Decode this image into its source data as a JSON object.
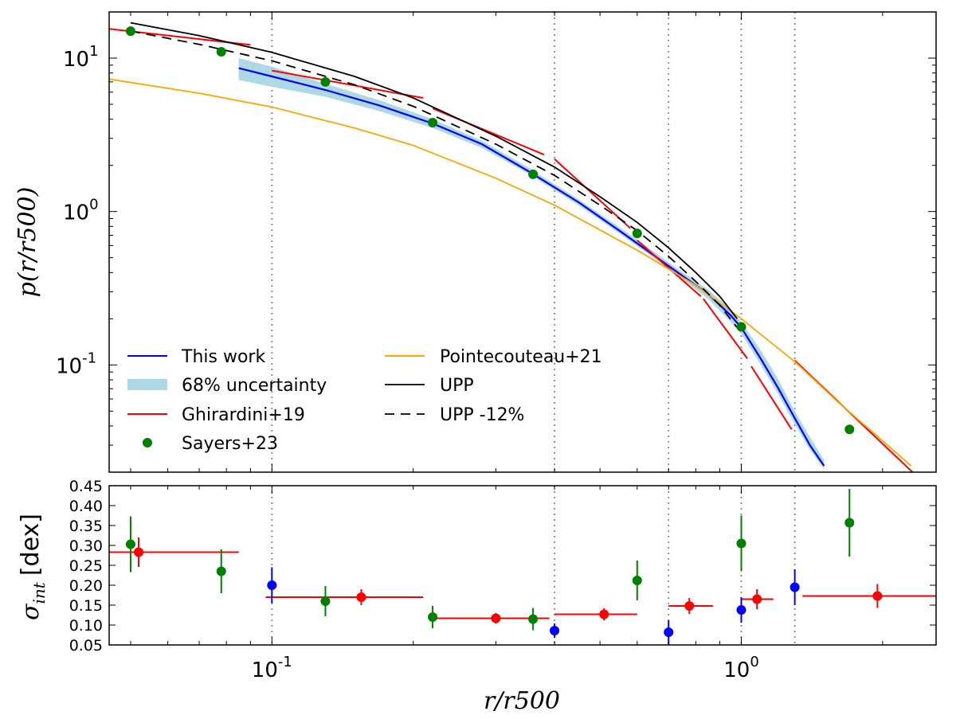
{
  "chart_data": [
    {
      "type": "line",
      "panel": "top",
      "ylabel": "p(r/r500)",
      "xscale": "log",
      "yscale": "log",
      "xlim": [
        0.045,
        2.6
      ],
      "ylim": [
        0.02,
        20
      ],
      "yticks": [
        {
          "base": "10",
          "exp": "-1"
        },
        {
          "base": "10",
          "exp": "0"
        },
        {
          "base": "10",
          "exp": "1"
        }
      ],
      "legend": {
        "location": "lower-left",
        "items": [
          {
            "label": "This work",
            "kind": "line",
            "color": "#0000ff"
          },
          {
            "label": "68% uncertainty",
            "kind": "band",
            "color": "#add8e6"
          },
          {
            "label": "Ghirardini+19",
            "kind": "line",
            "color": "#ff0000"
          },
          {
            "label": "Sayers+23",
            "kind": "dot",
            "color": "#008000"
          },
          {
            "label": "Pointecouteau+21",
            "kind": "line",
            "color": "#ffa500"
          },
          {
            "label": "UPP",
            "kind": "line",
            "color": "#000000"
          },
          {
            "label": "UPP -12%",
            "kind": "dashed",
            "color": "#000000"
          }
        ]
      },
      "vlines": [
        0.1,
        0.4,
        0.7,
        1.0,
        1.3
      ],
      "series": [
        {
          "name": "This work",
          "color": "#0000ff",
          "x": [
            0.085,
            0.1,
            0.13,
            0.17,
            0.22,
            0.28,
            0.35,
            0.45,
            0.55,
            0.65,
            0.75,
            0.85,
            0.95,
            1.0,
            1.1,
            1.2,
            1.3,
            1.4,
            1.5
          ],
          "y": [
            8.6,
            7.6,
            6.2,
            4.9,
            3.75,
            2.75,
            1.85,
            1.15,
            0.75,
            0.52,
            0.38,
            0.29,
            0.21,
            0.175,
            0.11,
            0.07,
            0.045,
            0.03,
            0.022
          ]
        },
        {
          "name": "68% uncertainty",
          "color": "#add8e6",
          "x": [
            0.085,
            0.1,
            0.13,
            0.17,
            0.22,
            0.28,
            0.35,
            0.45,
            0.55,
            0.65,
            0.75,
            0.85,
            0.95,
            1.0,
            1.1,
            1.2,
            1.3,
            1.4,
            1.5
          ],
          "y_low": [
            7.2,
            6.5,
            5.6,
            4.5,
            3.5,
            2.6,
            1.78,
            1.1,
            0.72,
            0.5,
            0.36,
            0.27,
            0.19,
            0.16,
            0.1,
            0.064,
            0.041,
            0.028,
            0.021
          ],
          "y_high": [
            10.0,
            8.8,
            6.8,
            5.3,
            4.0,
            2.9,
            1.95,
            1.2,
            0.79,
            0.55,
            0.4,
            0.31,
            0.23,
            0.19,
            0.125,
            0.08,
            0.05,
            0.034,
            0.024
          ]
        },
        {
          "name": "Ghirardini+19",
          "color": "#ff0000",
          "segments": [
            {
              "x": [
                0.045,
                0.09
              ],
              "y": [
                15.5,
                12.2
              ]
            },
            {
              "x": [
                0.1,
                0.21
              ],
              "y": [
                8.3,
                5.5
              ]
            },
            {
              "x": [
                0.22,
                0.38
              ],
              "y": [
                4.7,
                2.35
              ]
            },
            {
              "x": [
                0.4,
                0.58
              ],
              "y": [
                2.2,
                0.78
              ]
            },
            {
              "x": [
                0.6,
                0.82
              ],
              "y": [
                0.65,
                0.28
              ]
            },
            {
              "x": [
                0.83,
                1.03
              ],
              "y": [
                0.27,
                0.11
              ]
            },
            {
              "x": [
                1.05,
                1.28
              ],
              "y": [
                0.098,
                0.038
              ]
            },
            {
              "x": [
                1.3,
                2.45
              ],
              "y": [
                0.107,
                0.017
              ]
            }
          ]
        },
        {
          "name": "Sayers+23",
          "color": "#008000",
          "x": [
            0.05,
            0.078,
            0.13,
            0.22,
            0.36,
            0.6,
            1.0,
            1.7
          ],
          "y": [
            15.0,
            11.0,
            7.0,
            3.8,
            1.75,
            0.72,
            0.177,
            0.038
          ]
        },
        {
          "name": "Pointecouteau+21",
          "color": "#ffa500",
          "x": [
            0.045,
            0.07,
            0.1,
            0.15,
            0.2,
            0.3,
            0.4,
            0.6,
            0.8,
            1.0,
            1.3,
            1.6,
            2.0,
            2.3
          ],
          "y": [
            7.3,
            5.9,
            4.8,
            3.5,
            2.7,
            1.65,
            1.1,
            0.56,
            0.33,
            0.2,
            0.105,
            0.058,
            0.032,
            0.022
          ]
        },
        {
          "name": "UPP",
          "color": "#000000",
          "x": [
            0.05,
            0.07,
            0.1,
            0.15,
            0.2,
            0.3,
            0.4,
            0.5,
            0.6,
            0.7,
            0.8,
            0.9,
            0.98
          ],
          "y": [
            17.0,
            14.0,
            10.9,
            7.6,
            5.5,
            3.1,
            1.95,
            1.25,
            0.85,
            0.58,
            0.4,
            0.28,
            0.2
          ]
        },
        {
          "name": "UPP -12%",
          "color": "#000000",
          "dash": true,
          "x": [
            0.05,
            0.07,
            0.1,
            0.15,
            0.2,
            0.3,
            0.4,
            0.5,
            0.6,
            0.7,
            0.8,
            0.9,
            0.98
          ],
          "y": [
            15.0,
            12.3,
            9.6,
            6.7,
            4.85,
            2.75,
            1.72,
            1.1,
            0.75,
            0.51,
            0.35,
            0.245,
            0.175
          ]
        }
      ]
    },
    {
      "type": "scatter",
      "panel": "bottom",
      "xlabel": "r/r500",
      "ylabel_symbol": "σ",
      "ylabel_sub": "int",
      "ylabel_unit": "[dex]",
      "xscale": "log",
      "xlim": [
        0.045,
        2.6
      ],
      "ylim": [
        0.05,
        0.45
      ],
      "yticks": [
        "0.05",
        "0.10",
        "0.15",
        "0.20",
        "0.25",
        "0.30",
        "0.35",
        "0.40",
        "0.45"
      ],
      "xticks": [
        {
          "base": "10",
          "exp": "-1"
        },
        {
          "base": "10",
          "exp": "0"
        }
      ],
      "vlines": [
        0.1,
        0.4,
        0.7,
        1.0,
        1.3
      ],
      "series": [
        {
          "name": "Sayers+23",
          "color": "#008000",
          "x": [
            0.05,
            0.078,
            0.13,
            0.22,
            0.36,
            0.6,
            1.0,
            1.7
          ],
          "y": [
            0.303,
            0.235,
            0.16,
            0.12,
            0.115,
            0.212,
            0.305,
            0.357
          ],
          "err": [
            0.07,
            0.055,
            0.038,
            0.028,
            0.028,
            0.05,
            0.07,
            0.085
          ]
        },
        {
          "name": "Ghirardini+19",
          "color": "#ff0000",
          "x": [
            0.052,
            0.155,
            0.3,
            0.51,
            0.775,
            1.08,
            1.95
          ],
          "y": [
            0.283,
            0.17,
            0.117,
            0.127,
            0.148,
            0.165,
            0.173
          ],
          "err": [
            0.037,
            0.02,
            0.013,
            0.015,
            0.02,
            0.025,
            0.03
          ],
          "xerr_low": [
            0.045,
            0.097,
            0.22,
            0.4,
            0.7,
            1.0,
            1.35
          ],
          "xerr_high": [
            0.085,
            0.21,
            0.39,
            0.6,
            0.87,
            1.17,
            2.6
          ]
        },
        {
          "name": "This work",
          "color": "#0000ff",
          "x": [
            0.1,
            0.4,
            0.7,
            1.0,
            1.3
          ],
          "y": [
            0.2,
            0.086,
            0.082,
            0.138,
            0.195
          ],
          "err": [
            0.045,
            0.018,
            0.03,
            0.032,
            0.045
          ]
        }
      ]
    }
  ]
}
